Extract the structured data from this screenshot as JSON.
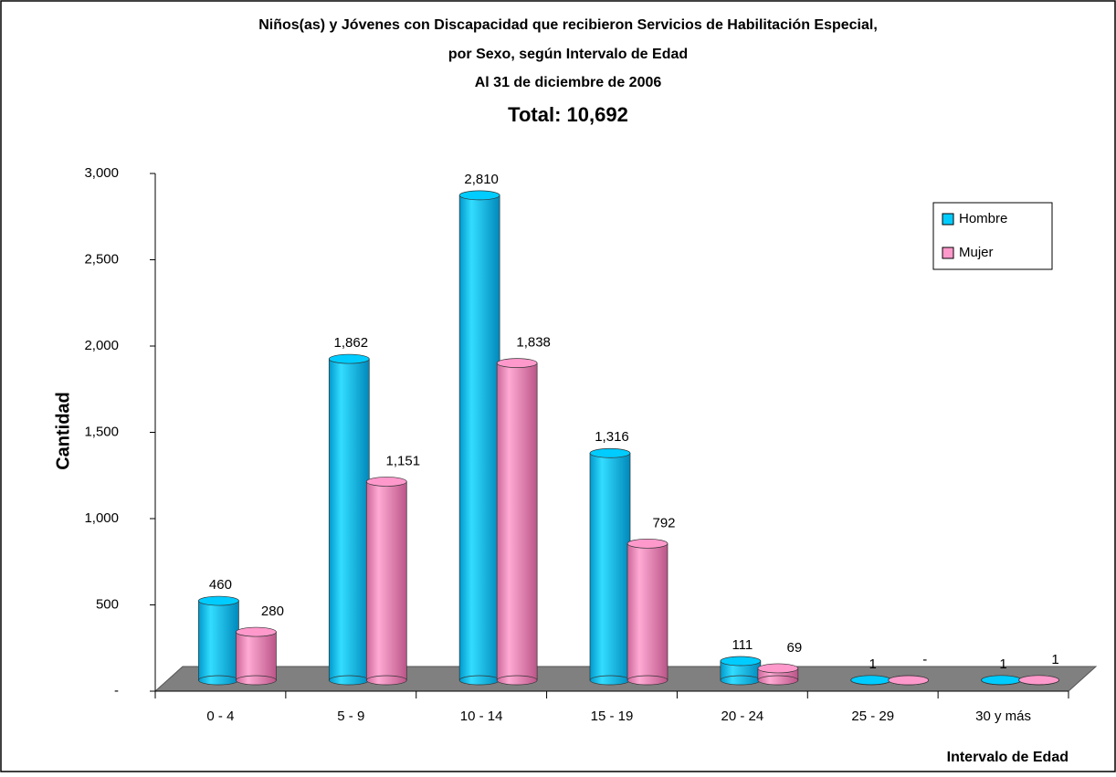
{
  "chart_data": {
    "type": "bar",
    "title": [
      "Niños(as) y Jóvenes con Discapacidad que recibieron Servicios de Habilitación Especial,",
      "por Sexo, según Intervalo de Edad",
      "Al 31 de diciembre de 2006"
    ],
    "subtitle": "Total:  10,692",
    "y_label": "Cantidad",
    "x_label": "Intervalo de Edad",
    "categories": [
      "0 - 4",
      "5 - 9",
      "10 - 14",
      "15 - 19",
      "20 - 24",
      "25 - 29",
      "30 y más"
    ],
    "series": [
      {
        "name": "Hombre",
        "color": "#00ccff",
        "values": [
          460,
          1862,
          2810,
          1316,
          111,
          1,
          1
        ],
        "value_labels": [
          "460",
          "1,862",
          "2,810",
          "1,316",
          "111",
          "1",
          "1"
        ]
      },
      {
        "name": "Mujer",
        "color": "#ff99cc",
        "values": [
          280,
          1151,
          1838,
          792,
          69,
          0,
          1
        ],
        "value_labels": [
          "280",
          "1,151",
          "1,838",
          "792",
          "69",
          "-",
          "1"
        ]
      }
    ],
    "ylim": [
      0,
      3000
    ],
    "yticks": [
      {
        "value": 0,
        "label": "-"
      },
      500,
      {
        "value": 1000,
        "label": "1,000"
      },
      {
        "value": 1500,
        "label": "1,500"
      },
      {
        "value": 2000,
        "label": "2,000"
      },
      {
        "value": 2500,
        "label": "2,500"
      },
      {
        "value": 3000,
        "label": "3,000"
      }
    ],
    "legend": "top-right"
  }
}
